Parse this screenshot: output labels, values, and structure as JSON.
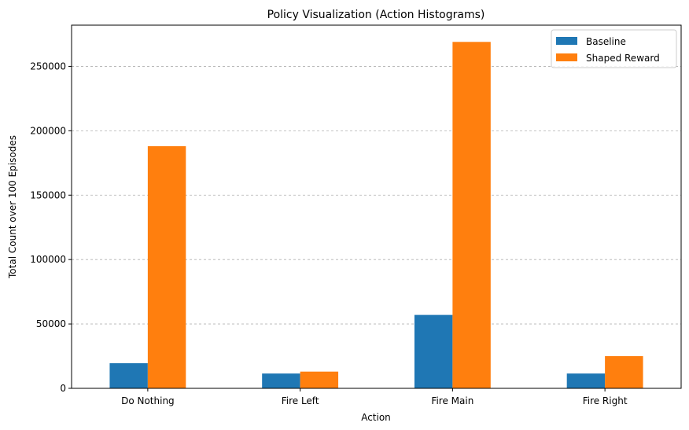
{
  "chart_data": {
    "type": "bar",
    "title": "Policy Visualization (Action Histograms)",
    "xlabel": "Action",
    "ylabel": "Total Count over 100 Episodes",
    "categories": [
      "Do Nothing",
      "Fire Left",
      "Fire Main",
      "Fire Right"
    ],
    "series": [
      {
        "name": "Baseline",
        "color": "#1f77b4",
        "values": [
          19500,
          11500,
          57000,
          11500
        ]
      },
      {
        "name": "Shaped Reward",
        "color": "#ff7f0e",
        "values": [
          188000,
          13000,
          269000,
          25000
        ]
      }
    ],
    "ylim": [
      0,
      282000
    ],
    "yticks": [
      0,
      50000,
      100000,
      150000,
      200000,
      250000
    ],
    "ytick_labels": [
      "0",
      "50000",
      "100000",
      "150000",
      "200000",
      "250000"
    ],
    "grid": {
      "axis": "y",
      "style": "dashed"
    },
    "legend_position": "top-right"
  }
}
